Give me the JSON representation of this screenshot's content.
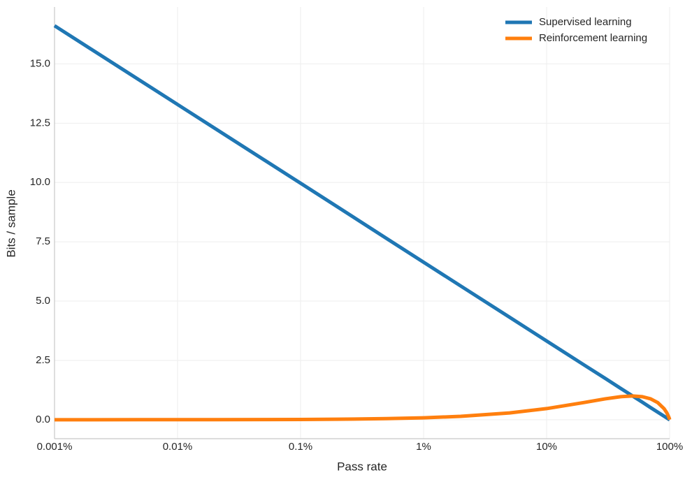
{
  "chart_data": {
    "type": "line",
    "xlabel": "Pass rate",
    "ylabel": "Bits / sample",
    "x": [
      0.001,
      0.002,
      0.005,
      0.01,
      0.02,
      0.05,
      0.1,
      0.2,
      0.5,
      1,
      2,
      5,
      10,
      20,
      30,
      40,
      50,
      60,
      70,
      80,
      90,
      95,
      99,
      100
    ],
    "series": [
      {
        "name": "Supervised learning",
        "color": "#1f77b4",
        "values": [
          16.61,
          15.61,
          14.29,
          13.29,
          12.29,
          10.97,
          9.97,
          8.97,
          7.64,
          6.64,
          5.64,
          4.32,
          3.32,
          2.32,
          1.74,
          1.32,
          1.0,
          0.74,
          0.51,
          0.32,
          0.15,
          0.07,
          0.01,
          0
        ]
      },
      {
        "name": "Reinforcement learning",
        "color": "#ff7f0e",
        "values": [
          0.0002,
          0.0003,
          0.0008,
          0.0015,
          0.0027,
          0.0062,
          0.0114,
          0.0208,
          0.0454,
          0.0808,
          0.1414,
          0.2864,
          0.469,
          0.722,
          0.881,
          0.971,
          1.0,
          0.971,
          0.881,
          0.722,
          0.469,
          0.286,
          0.081,
          0
        ]
      }
    ],
    "xscale": "log",
    "xlim": [
      0.001,
      100
    ],
    "xticks": [
      {
        "value": 0.001,
        "label": "0.001%"
      },
      {
        "value": 0.01,
        "label": "0.01%"
      },
      {
        "value": 0.1,
        "label": "0.1%"
      },
      {
        "value": 1,
        "label": "1%"
      },
      {
        "value": 10,
        "label": "10%"
      },
      {
        "value": 100,
        "label": "100%"
      }
    ],
    "ylim": [
      -0.8,
      17.4
    ],
    "yticks": [
      {
        "value": 0,
        "label": "0.0"
      },
      2.5,
      {
        "value": 5,
        "label": "5.0"
      },
      7.5,
      {
        "value": 10,
        "label": "10.0"
      },
      12.5,
      {
        "value": 15,
        "label": "15.0"
      }
    ],
    "grid": true,
    "legend": "upper right"
  }
}
